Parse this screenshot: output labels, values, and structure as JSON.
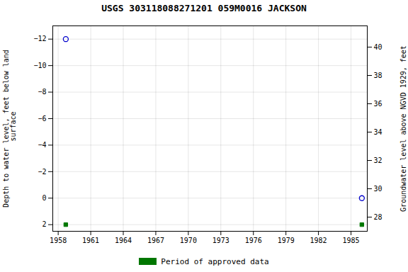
{
  "chart_data": {
    "type": "scatter",
    "title": "USGS 303118088271201 059M0016  JACKSON",
    "x": [
      1958.7,
      1986.0
    ],
    "xlim": [
      1957.5,
      1986.5
    ],
    "xticks": [
      1958,
      1961,
      1964,
      1967,
      1970,
      1973,
      1976,
      1979,
      1982,
      1985
    ],
    "ylabel": "Depth to water level, feet below land\n surface",
    "ylim": [
      2.5,
      -13.0
    ],
    "yticks": [
      2,
      0,
      -2,
      -4,
      -6,
      -8,
      -10,
      -12
    ],
    "y2label": "Groundwater level above NGVD 1929, feet",
    "y2lim": [
      27.0,
      41.5
    ],
    "y2ticks": [
      28,
      30,
      32,
      34,
      36,
      38,
      40
    ],
    "grid": true,
    "legend": "bottom",
    "series": [
      {
        "color": "#0000cc",
        "marker": "circle",
        "values": [
          -12.0,
          0.0
        ]
      },
      {
        "name": "Period of approved data",
        "color": "#007700",
        "marker": "square",
        "values": [
          2.0,
          2.0
        ]
      }
    ]
  }
}
